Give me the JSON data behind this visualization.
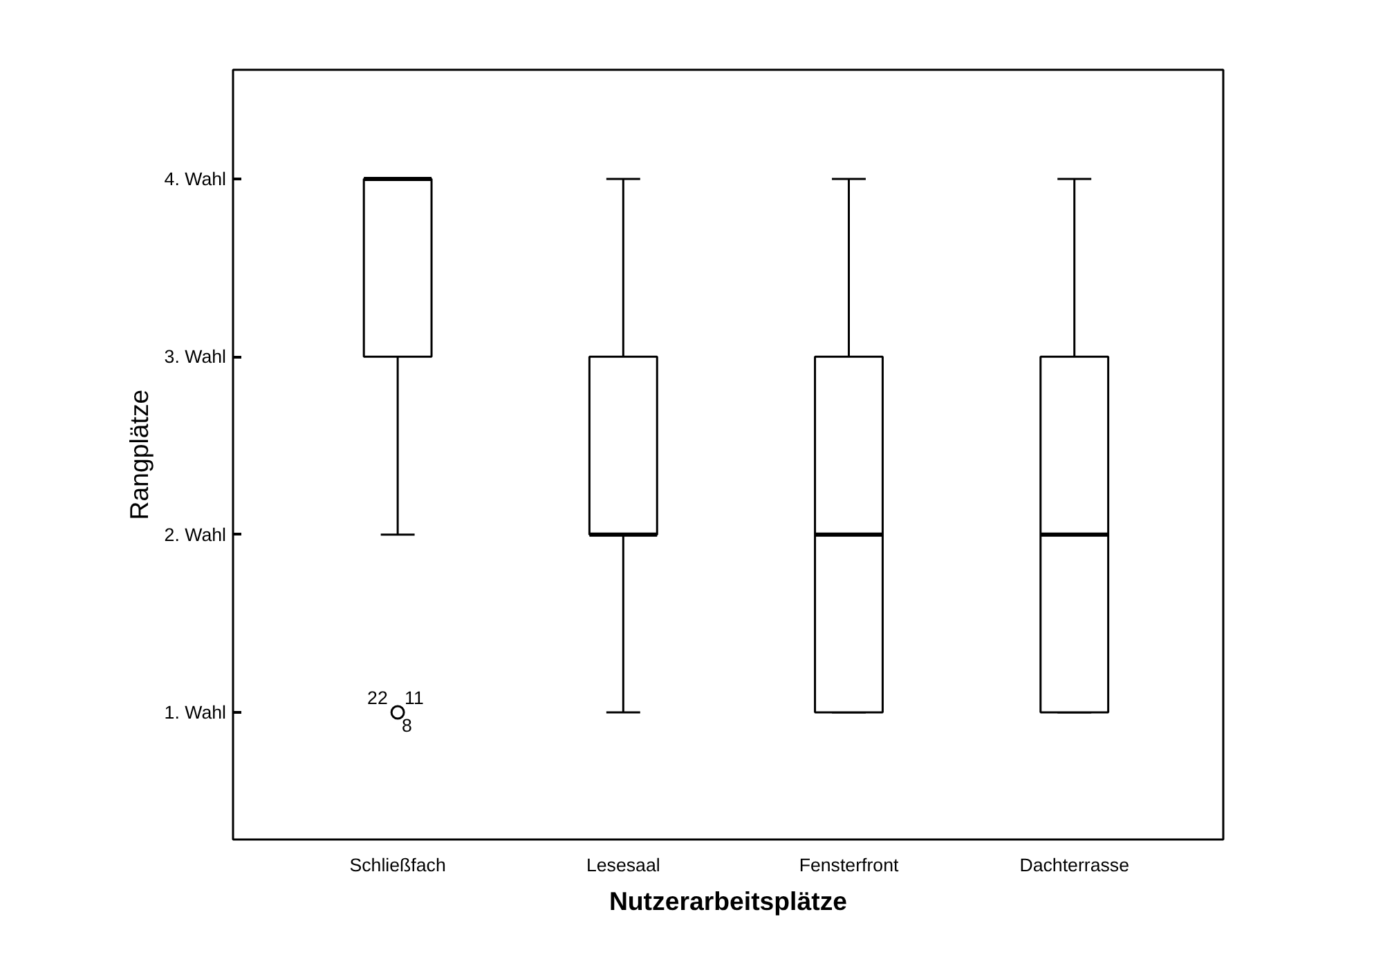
{
  "chart_data": {
    "type": "box",
    "xlabel": "Nutzerarbeitsplätze",
    "ylabel": "Rangplätze",
    "categories": [
      "Schließfach",
      "Lesesaal",
      "Fensterfront",
      "Dachterrasse"
    ],
    "boxes": [
      {
        "low": 2,
        "q1": 3,
        "median": 4,
        "q3": 4,
        "high": 4,
        "outliers": [
          1
        ]
      },
      {
        "low": 1,
        "q1": 2,
        "median": 2,
        "q3": 3,
        "high": 4
      },
      {
        "low": 1,
        "q1": 1,
        "median": 2,
        "q3": 3,
        "high": 4
      },
      {
        "low": 1,
        "q1": 1,
        "median": 2,
        "q3": 3,
        "high": 4
      }
    ],
    "ylim": [
      0.285,
      4.614
    ],
    "yticks": [
      {
        "value": 1,
        "label": "1. Wahl"
      },
      {
        "value": 2,
        "label": "2. Wahl"
      },
      {
        "value": 3,
        "label": "3. Wahl"
      },
      {
        "value": 4,
        "label": "4. Wahl"
      }
    ],
    "annotations": [
      "22",
      "11",
      "8"
    ],
    "color": "#ffffff"
  }
}
